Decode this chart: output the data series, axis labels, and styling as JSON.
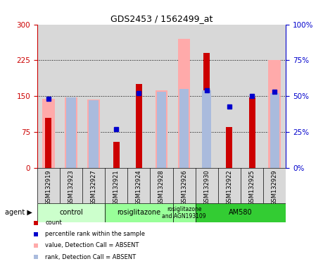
{
  "title": "GDS2453 / 1562499_at",
  "samples": [
    "GSM132919",
    "GSM132923",
    "GSM132927",
    "GSM132921",
    "GSM132924",
    "GSM132928",
    "GSM132926",
    "GSM132930",
    "GSM132922",
    "GSM132925",
    "GSM132929"
  ],
  "count_values": [
    105,
    0,
    0,
    55,
    175,
    0,
    0,
    240,
    85,
    148,
    0
  ],
  "pink_bar_values": [
    145,
    147,
    143,
    0,
    0,
    163,
    270,
    0,
    0,
    0,
    225
  ],
  "blue_dot_pct": [
    48,
    0,
    0,
    27,
    52,
    0,
    0,
    54,
    43,
    50,
    53
  ],
  "lightblue_bar_pct": [
    0,
    49,
    47,
    0,
    0,
    53,
    55,
    54,
    0,
    0,
    52
  ],
  "groups": [
    {
      "label": "control",
      "start": 0,
      "end": 2,
      "color": "#ccffcc"
    },
    {
      "label": "rosiglitazone",
      "start": 3,
      "end": 5,
      "color": "#99ff99"
    },
    {
      "label": "rosiglitazone\nand AGN193109",
      "start": 6,
      "end": 6,
      "color": "#99ff99"
    },
    {
      "label": "AM580",
      "start": 7,
      "end": 10,
      "color": "#33cc33"
    }
  ],
  "ylim_left": [
    0,
    300
  ],
  "ylim_right": [
    0,
    100
  ],
  "yticks_left": [
    0,
    75,
    150,
    225,
    300
  ],
  "yticks_right": [
    0,
    25,
    50,
    75,
    100
  ],
  "left_axis_color": "#cc0000",
  "right_axis_color": "#0000cc",
  "pink_color": "#ffaaaa",
  "lightblue_color": "#aabbdd",
  "dark_red_color": "#cc0000",
  "blue_dot_color": "#0000cc",
  "bg_color": "#d8d8d8",
  "dotted_grid": [
    75,
    150,
    225
  ]
}
